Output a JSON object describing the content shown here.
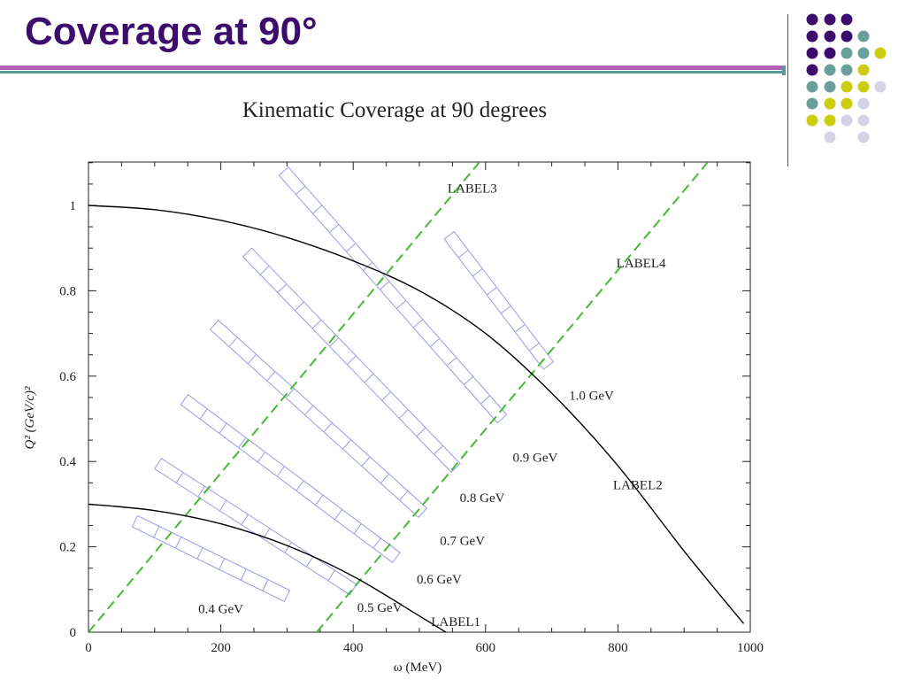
{
  "slide": {
    "title": "Coverage at 90°"
  },
  "decor": {
    "dot_colors": {
      "purple": "#3d0d6e",
      "teal": "#6aa09c",
      "yellow": "#cccc10",
      "lavender": "#d4d4e6"
    }
  },
  "chart_data": {
    "type": "line",
    "title": "Kinematic Coverage at 90 degrees",
    "xlabel": "ω (MeV)",
    "ylabel": "Q² (GeV/c)²",
    "xlim": [
      0,
      1000
    ],
    "ylim": [
      0,
      1.1
    ],
    "xticks": [
      0,
      200,
      400,
      600,
      800,
      1000
    ],
    "yticks": [
      0,
      0.2,
      0.4,
      0.6,
      0.8,
      1
    ],
    "xtick_labels": [
      "0",
      "200",
      "400",
      "600",
      "800",
      "1000"
    ],
    "ytick_labels": [
      "0",
      "0.2",
      "0.4",
      "0.6",
      "0.8",
      "1"
    ],
    "grid": false,
    "colors": {
      "curve": "#000000",
      "dashed": "#44bb33",
      "band": "#9a9ae6"
    },
    "curves": [
      {
        "label": "LABEL1",
        "x": [
          0,
          100,
          200,
          300,
          400,
          500,
          540
        ],
        "y": [
          0.3,
          0.285,
          0.254,
          0.203,
          0.131,
          0.038,
          0
        ]
      },
      {
        "label": "LABEL2",
        "x": [
          0,
          100,
          200,
          300,
          400,
          500,
          600,
          700,
          800,
          900,
          990
        ],
        "y": [
          1.0,
          0.99,
          0.965,
          0.925,
          0.87,
          0.8,
          0.7,
          0.56,
          0.39,
          0.19,
          0.02
        ]
      }
    ],
    "dashed_lines": [
      {
        "label": "LABEL3",
        "x": [
          0,
          590
        ],
        "y": [
          0,
          1.1
        ]
      },
      {
        "label": "LABEL4",
        "x": [
          345,
          935
        ],
        "y": [
          0,
          1.1
        ]
      }
    ],
    "energy_bands": [
      {
        "label": "0.4 GeV",
        "x": [
          70,
          300
        ],
        "y": [
          0.26,
          0.085
        ]
      },
      {
        "label": "0.5 GeV",
        "x": [
          105,
          400
        ],
        "y": [
          0.395,
          0.1
        ]
      },
      {
        "label": "0.6 GeV",
        "x": [
          145,
          465
        ],
        "y": [
          0.545,
          0.175
        ]
      },
      {
        "label": "0.7 GeV",
        "x": [
          190,
          505
        ],
        "y": [
          0.72,
          0.28
        ]
      },
      {
        "label": "0.8 GeV",
        "x": [
          240,
          555
        ],
        "y": [
          0.89,
          0.385
        ]
      },
      {
        "label": "0.9 GeV",
        "x": [
          295,
          625
        ],
        "y": [
          1.08,
          0.5
        ]
      },
      {
        "label": "1.0 GeV",
        "x": [
          545,
          695
        ],
        "y": [
          0.93,
          0.625
        ]
      }
    ],
    "annotations": [
      {
        "text": "LABEL1",
        "x": 555,
        "y": 0.025
      },
      {
        "text": "LABEL2",
        "x": 830,
        "y": 0.345
      },
      {
        "text": "LABEL3",
        "x": 580,
        "y": 1.04
      },
      {
        "text": "LABEL4",
        "x": 835,
        "y": 0.865
      },
      {
        "text": "0.4 GeV",
        "x": 200,
        "y": 0.055
      },
      {
        "text": "0.5 GeV",
        "x": 440,
        "y": 0.058
      },
      {
        "text": "0.6 GeV",
        "x": 530,
        "y": 0.125
      },
      {
        "text": "0.7 GeV",
        "x": 565,
        "y": 0.215
      },
      {
        "text": "0.8 GeV",
        "x": 595,
        "y": 0.315
      },
      {
        "text": "0.9 GeV",
        "x": 675,
        "y": 0.41
      },
      {
        "text": "1.0 GeV",
        "x": 760,
        "y": 0.555
      }
    ]
  }
}
